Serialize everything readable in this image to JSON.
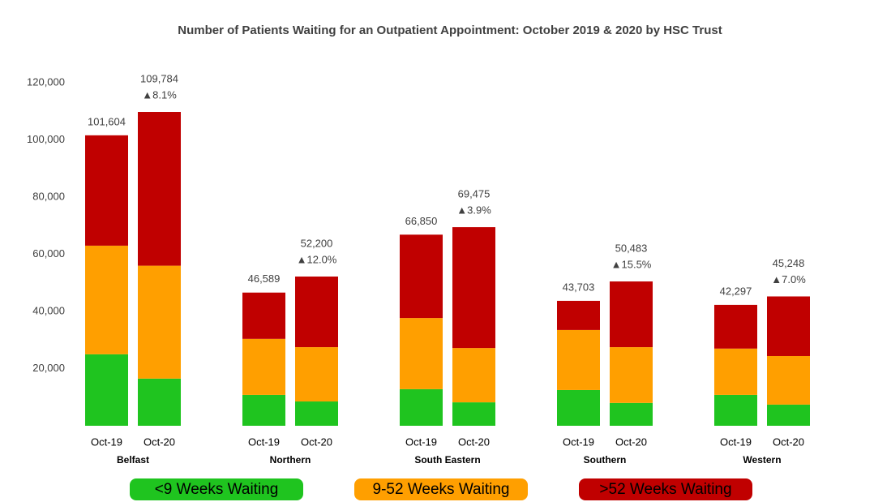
{
  "chart_data": {
    "type": "stacked-bar",
    "title": "Number of Patients Waiting for an Outpatient Appointment: October 2019 & 2020 by HSC Trust",
    "groups": [
      "Belfast",
      "Northern",
      "South Eastern",
      "Southern",
      "Western"
    ],
    "categories": [
      "Oct-19",
      "Oct-20",
      "Oct-19",
      "Oct-20",
      "Oct-19",
      "Oct-20",
      "Oct-19",
      "Oct-20",
      "Oct-19",
      "Oct-20"
    ],
    "series": [
      {
        "name": "<9 Weeks Waiting",
        "color": "#1fc41f",
        "values": [
          25000,
          16500,
          10800,
          8500,
          12800,
          8200,
          12500,
          8000,
          10800,
          7400
        ]
      },
      {
        "name": "9-52 Weeks Waiting",
        "color": "#ff9f00",
        "values": [
          38000,
          39500,
          19600,
          19000,
          24900,
          19000,
          21000,
          19500,
          16200,
          17000
        ]
      },
      {
        "name": ">52 Weeks Waiting",
        "color": "#c00000",
        "values": [
          38604,
          53784,
          16189,
          24700,
          29150,
          42275,
          10203,
          22983,
          15297,
          20848
        ]
      }
    ],
    "totals": [
      101604,
      109784,
      46589,
      52200,
      66850,
      69475,
      43703,
      50483,
      42297,
      45248
    ],
    "total_labels": [
      "101,604",
      "109,784",
      "46,589",
      "52,200",
      "66,850",
      "69,475",
      "43,703",
      "50,483",
      "42,297",
      "45,248"
    ],
    "changes": [
      8.1,
      12.0,
      3.9,
      15.5,
      7.0
    ],
    "change_labels": [
      "▲8.1%",
      "▲12.0%",
      "▲3.9%",
      "▲15.5%",
      "▲7.0%"
    ],
    "ylim": [
      0,
      120000
    ],
    "yticks": [
      {
        "value": 20000,
        "label": "20,000"
      },
      {
        "value": 40000,
        "label": "40,000"
      },
      {
        "value": 60000,
        "label": "60,000"
      },
      {
        "value": 80000,
        "label": "80,000"
      },
      {
        "value": 100000,
        "label": "100,000"
      },
      {
        "value": 120000,
        "label": "120,000"
      }
    ]
  }
}
